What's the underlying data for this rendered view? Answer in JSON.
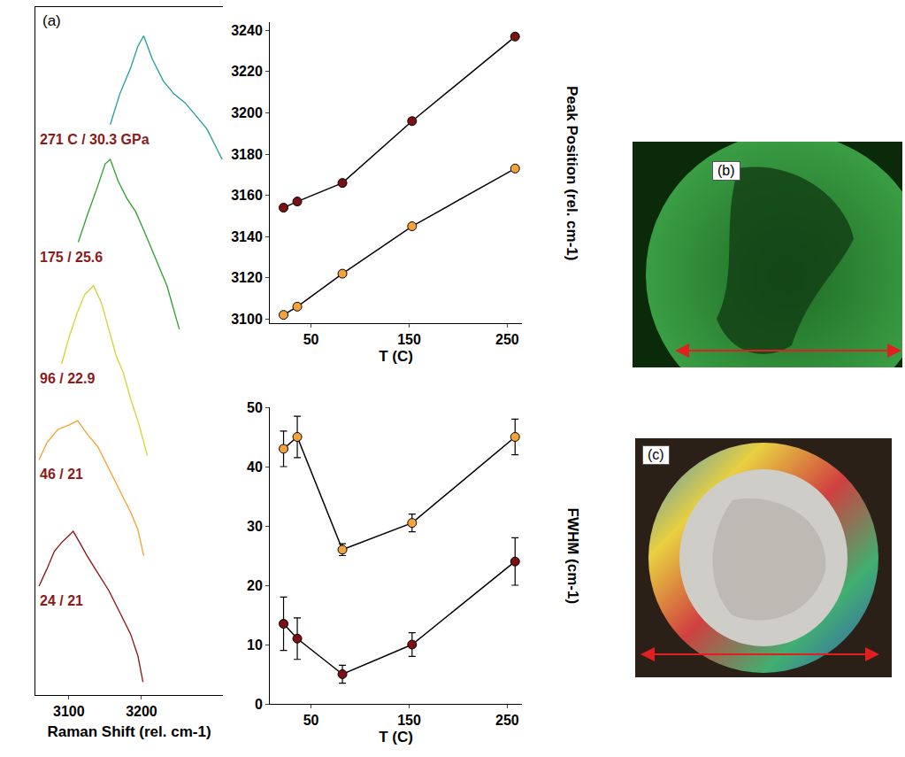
{
  "chart_data": [
    {
      "type": "line",
      "title": "(a)",
      "x_label": "Raman Shift (rel. cm-1)",
      "xlim": [
        3054,
        3312
      ],
      "xticks": [
        3100,
        3200
      ],
      "ylim": [
        0,
        79
      ],
      "tick_labels": "x",
      "grid": false,
      "series": [
        {
          "name": "271 C / 30.3 GPa",
          "color": "#1f9c9c",
          "x": [
            3157,
            3170,
            3185,
            3195,
            3203,
            3215,
            3230,
            3245,
            3260,
            3275,
            3290,
            3305,
            3311
          ],
          "values": [
            65.5,
            69,
            72,
            74.5,
            75.7,
            73,
            70.5,
            69,
            68,
            66.5,
            65,
            62.5,
            61.5
          ]
        },
        {
          "name": "175 / 25.6",
          "color": "#2e9e2e",
          "x": [
            3113,
            3125,
            3140,
            3150,
            3157,
            3168,
            3180,
            3192,
            3205,
            3220,
            3235,
            3252
          ],
          "values": [
            52,
            55,
            58.5,
            61,
            61.5,
            59,
            57,
            55.5,
            53,
            50,
            47,
            42
          ]
        },
        {
          "name": "96 / 22.9",
          "color": "#d2d236",
          "x": [
            3090,
            3100,
            3112,
            3122,
            3134,
            3145,
            3155,
            3165,
            3175,
            3185,
            3195,
            3208
          ],
          "values": [
            38,
            41,
            44,
            46,
            47,
            45,
            42,
            39,
            37,
            34,
            31.5,
            27.5
          ]
        },
        {
          "name": "46 / 21",
          "color": "#f5a030",
          "x": [
            3059,
            3070,
            3085,
            3100,
            3112,
            3125,
            3140,
            3155,
            3170,
            3185,
            3195,
            3203
          ],
          "values": [
            27,
            29,
            30.5,
            31,
            31.5,
            30,
            28.5,
            26,
            23.5,
            21,
            19,
            16
          ]
        },
        {
          "name": "24 / 21",
          "color": "#8b1010",
          "x": [
            3059,
            3070,
            3080,
            3090,
            3100,
            3106,
            3115,
            3125,
            3140,
            3155,
            3170,
            3185,
            3195,
            3202
          ],
          "values": [
            12.5,
            14.5,
            16.5,
            17.5,
            18.3,
            18.8,
            17.5,
            16,
            14,
            12,
            9.5,
            7,
            4.5,
            1.5
          ]
        }
      ]
    },
    {
      "type": "line",
      "marker": "circle",
      "x_label": "T (C)",
      "y_label": "Peak Position (rel. cm-1)",
      "x": [
        22,
        36,
        82,
        153,
        258
      ],
      "xlim": [
        8,
        265
      ],
      "xticks": [
        50,
        150,
        250
      ],
      "ylim": [
        3098,
        3244
      ],
      "yticks": [
        3100,
        3120,
        3140,
        3160,
        3180,
        3200,
        3220,
        3240
      ],
      "grid": false,
      "series": [
        {
          "color": "#7b1113",
          "values": [
            3154,
            3157,
            3166,
            3196,
            3237
          ]
        },
        {
          "color": "#f4a23a",
          "values": [
            3102,
            3106,
            3122,
            3145,
            3173
          ]
        }
      ]
    },
    {
      "type": "line",
      "marker": "circle",
      "x_label": "T (C)",
      "y_label": "FWHM (cm-1)",
      "x": [
        22,
        36,
        82,
        153,
        258
      ],
      "xlim": [
        8,
        265
      ],
      "xticks": [
        50,
        150,
        250
      ],
      "ylim": [
        0,
        50
      ],
      "yticks": [
        0,
        10,
        20,
        30,
        40,
        50
      ],
      "grid": false,
      "series": [
        {
          "color": "#f4a23a",
          "values": [
            43,
            45,
            26,
            30.5,
            45
          ],
          "error": [
            3,
            3.5,
            1,
            1.5,
            3
          ]
        },
        {
          "color": "#7b1113",
          "values": [
            13.5,
            11,
            5,
            10,
            24
          ],
          "error": [
            4.5,
            3.5,
            1.5,
            2,
            4
          ]
        }
      ]
    }
  ],
  "images": [
    {
      "label": "(b)"
    },
    {
      "label": "(c)"
    }
  ]
}
